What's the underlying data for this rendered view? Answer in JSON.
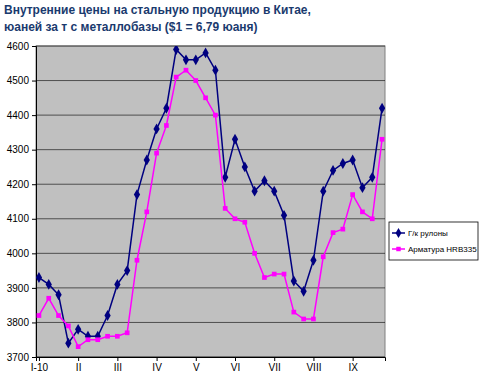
{
  "chart_data": {
    "type": "line",
    "title": "Внутренние цены на стальную продукцию в Китае,",
    "subtitle": "юаней за т с металлобазы ($1 = 6,79 юаня)",
    "categories": [
      "I-10",
      null,
      null,
      null,
      "II",
      null,
      null,
      null,
      "III",
      null,
      null,
      null,
      "IV",
      null,
      null,
      null,
      "V",
      null,
      null,
      null,
      "VI",
      null,
      null,
      null,
      "VII",
      null,
      null,
      null,
      "VIII",
      null,
      null,
      null,
      "IX",
      null,
      null,
      null
    ],
    "series": [
      {
        "name": "Г/к рулоны",
        "color": "#000080",
        "marker": "diamond",
        "values": [
          3930,
          3910,
          3880,
          3740,
          3780,
          3760,
          3760,
          3820,
          3910,
          3950,
          4170,
          4270,
          4360,
          4420,
          4590,
          4560,
          4560,
          4580,
          4530,
          4220,
          4330,
          4250,
          4180,
          4210,
          4180,
          4110,
          3920,
          3890,
          3980,
          4180,
          4240,
          4260,
          4270,
          4190,
          4220,
          4420
        ]
      },
      {
        "name": "Арматура HRB335",
        "color": "#ff00ff",
        "marker": "square",
        "values": [
          3820,
          3870,
          3820,
          3790,
          3730,
          3750,
          3750,
          3760,
          3760,
          3770,
          3980,
          4120,
          4290,
          4370,
          4510,
          4530,
          4500,
          4450,
          4400,
          4130,
          4100,
          4090,
          4000,
          3930,
          3940,
          3940,
          3830,
          3810,
          3810,
          3990,
          4060,
          4070,
          4170,
          4120,
          4100,
          4330
        ]
      }
    ],
    "ylim": [
      3700,
      4600
    ],
    "yticks": [
      3700,
      3800,
      3900,
      4000,
      4100,
      4200,
      4300,
      4400,
      4500,
      4600
    ],
    "grid": true,
    "legend": "right"
  }
}
